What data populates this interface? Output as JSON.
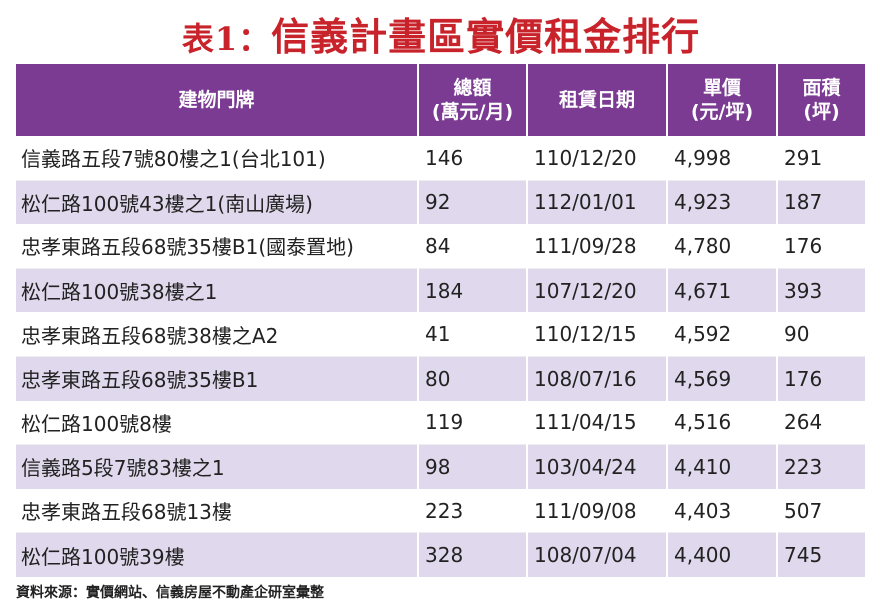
{
  "title": {
    "prefix": "表1：",
    "main": "信義計畫區實價租金排行"
  },
  "colors": {
    "title": "#c8232b",
    "header": "#7b3b93",
    "stripe": "#e0d8ec"
  },
  "headers": [
    [
      "建物門牌",
      ""
    ],
    [
      "總額",
      "(萬元/月)"
    ],
    [
      "租賃日期",
      ""
    ],
    [
      "單價",
      "(元/坪)"
    ],
    [
      "面積",
      "(坪)"
    ]
  ],
  "rows": [
    [
      "信義路五段7號80樓之1(台北101)",
      "146",
      "110/12/20",
      "4,998",
      "291"
    ],
    [
      "松仁路100號43樓之1(南山廣場)",
      "92",
      "112/01/01",
      "4,923",
      "187"
    ],
    [
      "忠孝東路五段68號35樓B1(國泰置地)",
      "84",
      "111/09/28",
      "4,780",
      "176"
    ],
    [
      "松仁路100號38樓之1",
      "184",
      "107/12/20",
      "4,671",
      "393"
    ],
    [
      "忠孝東路五段68號38樓之A2",
      "41",
      "110/12/15",
      "4,592",
      "90"
    ],
    [
      "忠孝東路五段68號35樓B1",
      "80",
      "108/07/16",
      "4,569",
      "176"
    ],
    [
      "松仁路100號8樓",
      "119",
      "111/04/15",
      "4,516",
      "264"
    ],
    [
      "信義路5段7號83樓之1",
      "98",
      "103/04/24",
      "4,410",
      "223"
    ],
    [
      "忠孝東路五段68號13樓",
      "223",
      "111/09/08",
      "4,403",
      "507"
    ],
    [
      "松仁路100號39樓",
      "328",
      "108/07/04",
      "4,400",
      "745"
    ]
  ],
  "source": "資料來源：實價網站、信義房屋不動產企研室彙整"
}
